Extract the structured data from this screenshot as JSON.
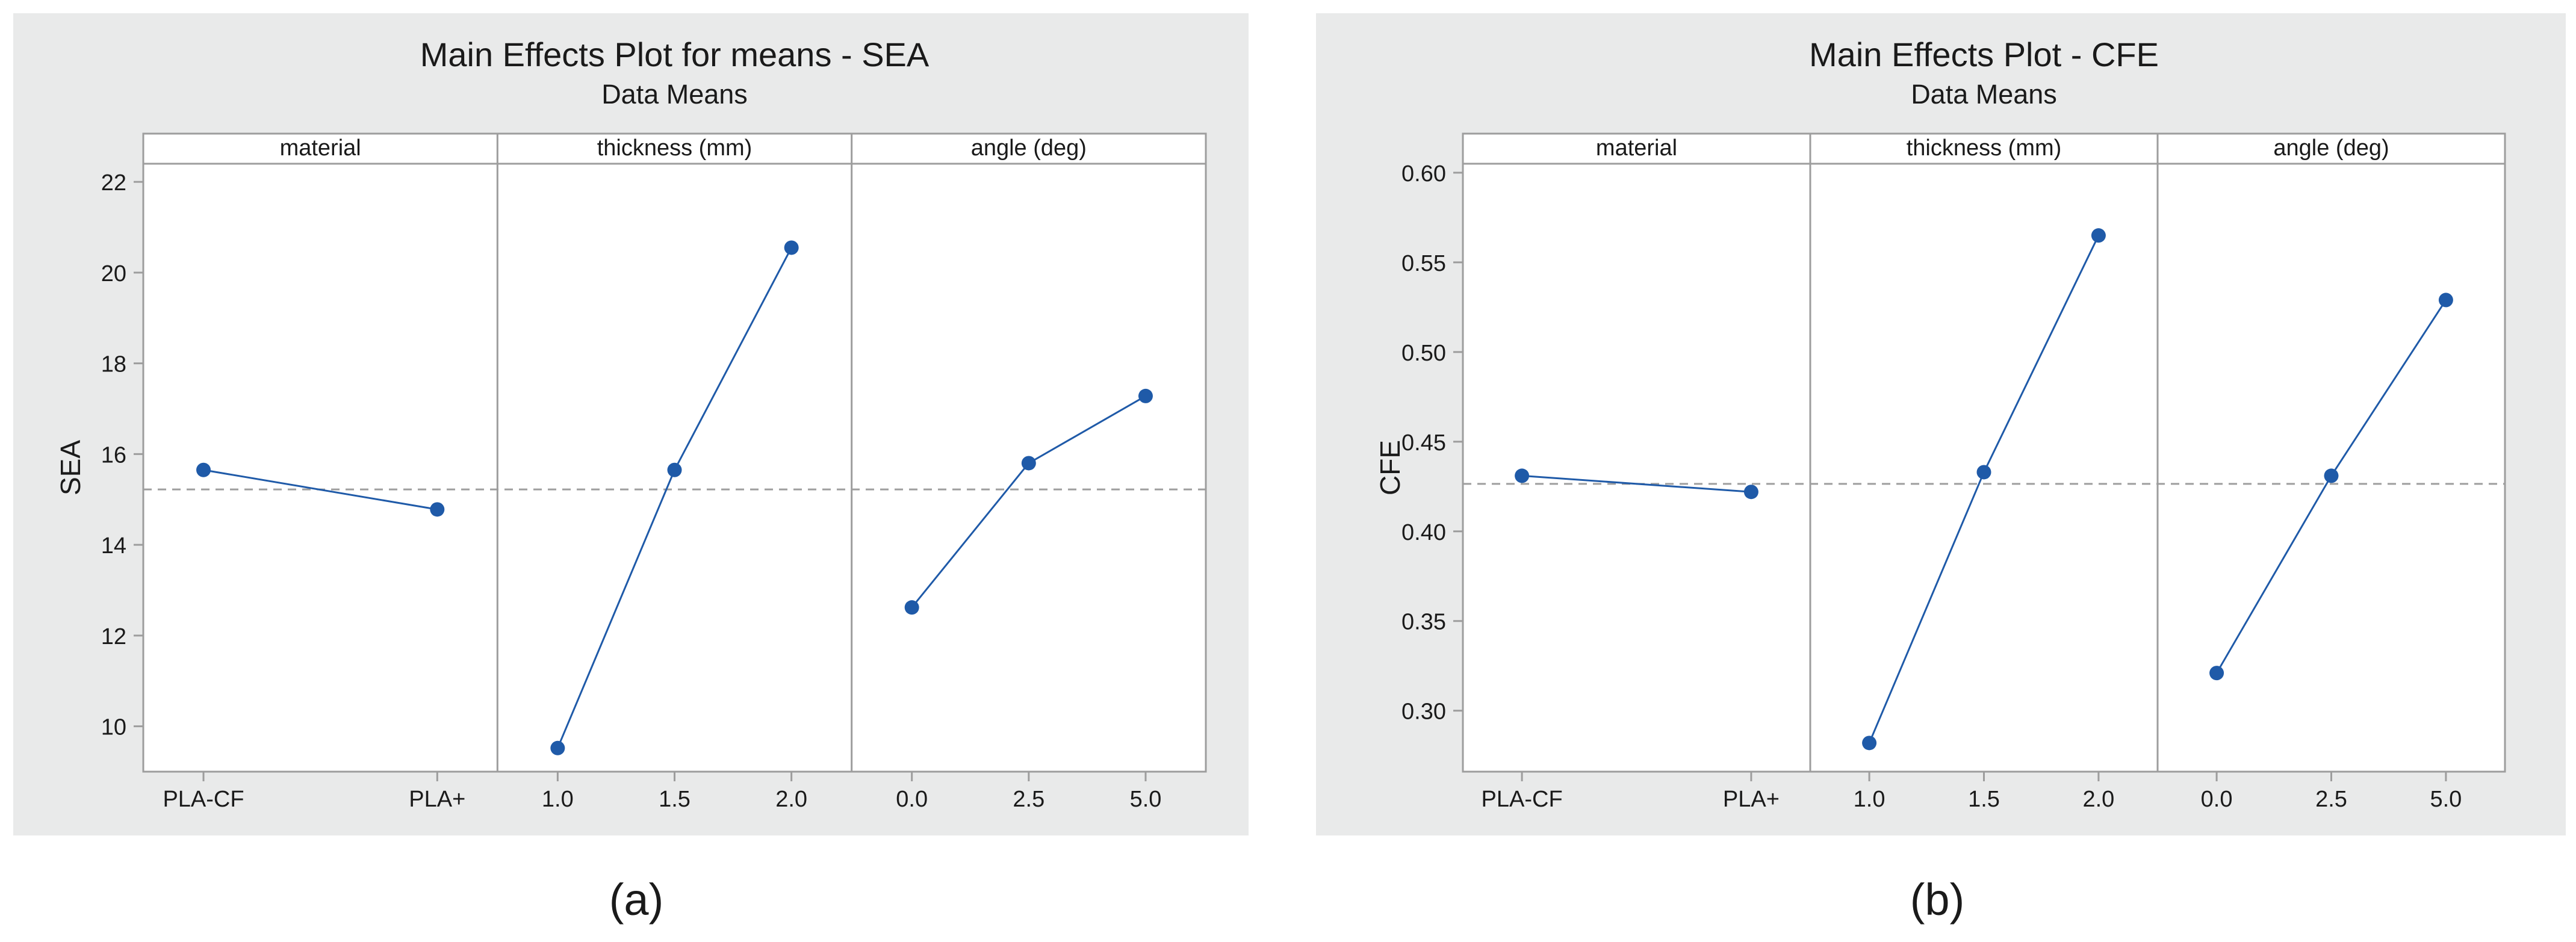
{
  "figure": {
    "captions": [
      "(a)",
      "(b)"
    ]
  },
  "style": {
    "panel_bg": "#e9eaea",
    "plot_bg": "#ffffff",
    "frame": "#9d9d9d",
    "series_color": "#1f5aa8",
    "ref_line": "#9e9e9e",
    "text": "#1a1a1a"
  },
  "chart_data": [
    {
      "type": "line",
      "title": "Main Effects Plot for means - SEA",
      "subtitle": "Data Means",
      "ylabel": "SEA",
      "ylim": [
        9.0,
        22.4
      ],
      "yticks": [
        10,
        12,
        14,
        16,
        18,
        20,
        22
      ],
      "ytick_labels": [
        "10",
        "12",
        "14",
        "16",
        "18",
        "20",
        "22"
      ],
      "reference_line": 15.22,
      "grid": false,
      "facets": [
        {
          "label": "material",
          "categories": [
            "PLA-CF",
            "PLA+"
          ],
          "values": [
            15.65,
            14.78
          ]
        },
        {
          "label": "thickness (mm)",
          "categories": [
            "1.0",
            "1.5",
            "2.0"
          ],
          "values": [
            9.52,
            15.65,
            20.55
          ]
        },
        {
          "label": "angle (deg)",
          "categories": [
            "0.0",
            "2.5",
            "5.0"
          ],
          "values": [
            12.62,
            15.8,
            17.28
          ]
        }
      ]
    },
    {
      "type": "line",
      "title": "Main Effects Plot - CFE",
      "subtitle": "Data Means",
      "ylabel": "CFE",
      "ylim": [
        0.266,
        0.605
      ],
      "yticks": [
        0.3,
        0.35,
        0.4,
        0.45,
        0.5,
        0.55,
        0.6
      ],
      "ytick_labels": [
        "0.30",
        "0.35",
        "0.40",
        "0.45",
        "0.50",
        "0.55",
        "0.60"
      ],
      "reference_line": 0.4265,
      "grid": false,
      "facets": [
        {
          "label": "material",
          "categories": [
            "PLA-CF",
            "PLA+"
          ],
          "values": [
            0.431,
            0.422
          ]
        },
        {
          "label": "thickness (mm)",
          "categories": [
            "1.0",
            "1.5",
            "2.0"
          ],
          "values": [
            0.282,
            0.433,
            0.565
          ]
        },
        {
          "label": "angle (deg)",
          "categories": [
            "0.0",
            "2.5",
            "5.0"
          ],
          "values": [
            0.321,
            0.431,
            0.529
          ]
        }
      ]
    }
  ]
}
